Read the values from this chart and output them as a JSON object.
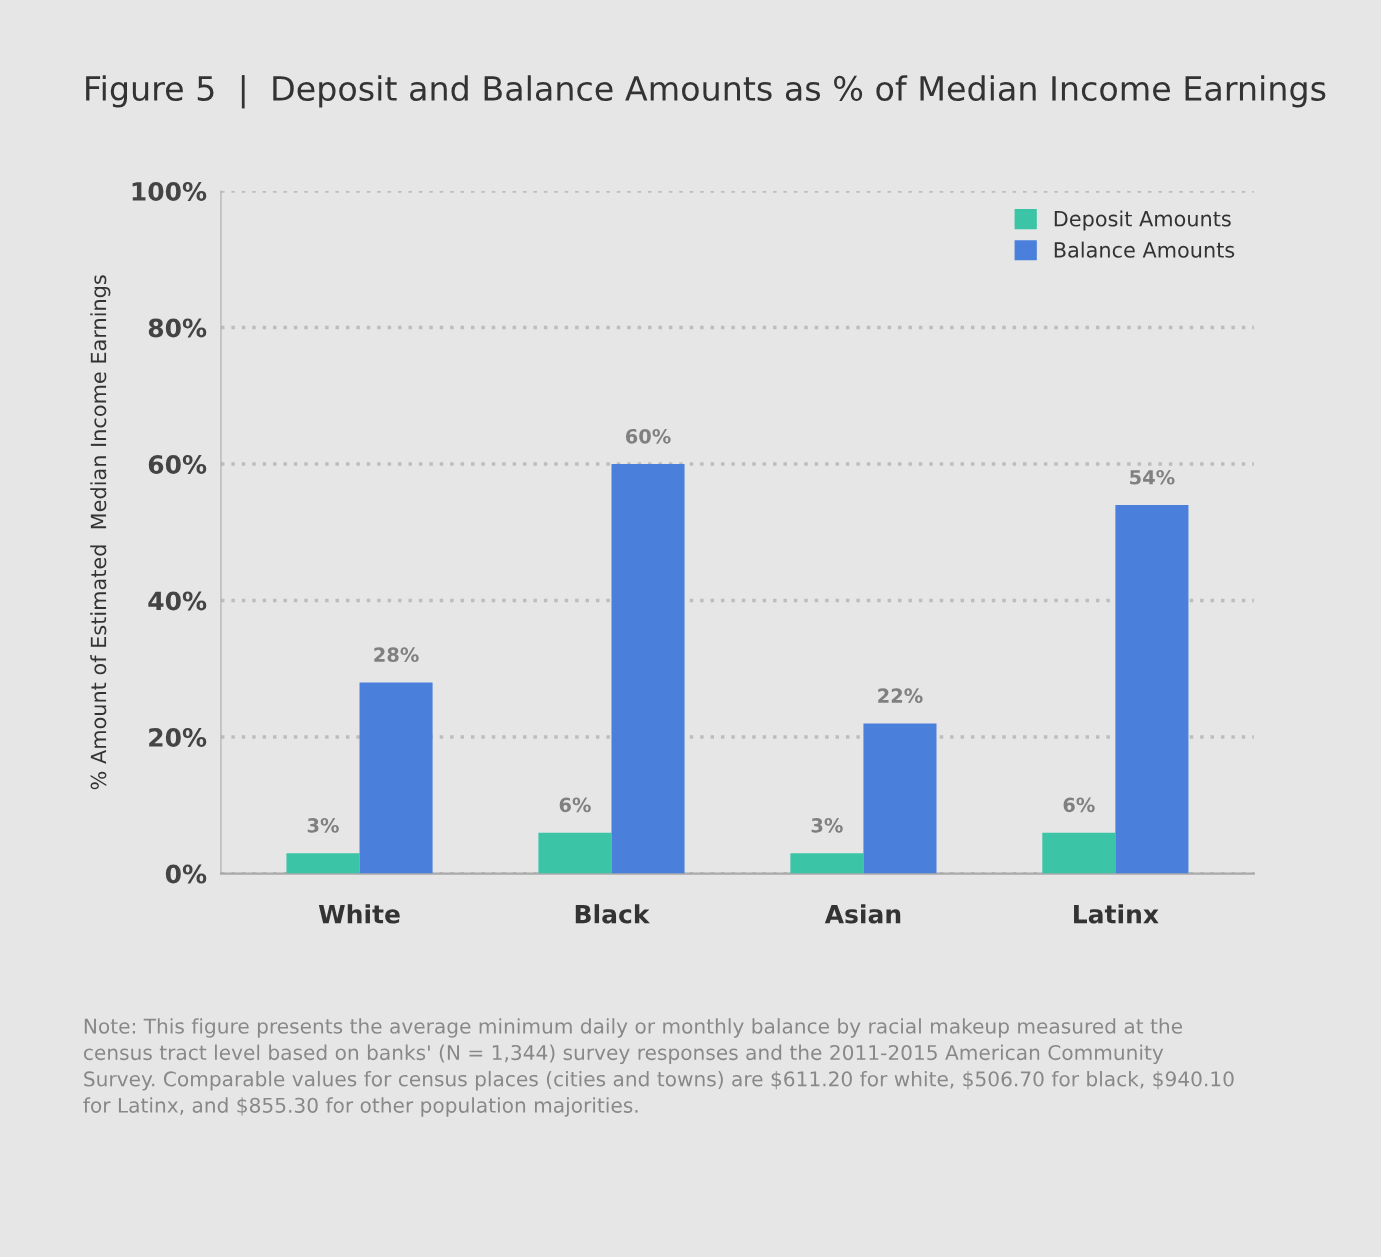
{
  "chart_data": {
    "type": "bar",
    "title": "Figure 5  |  Deposit and Balance Amounts as % of Median Income Earnings",
    "ylabel": "% Amount of Estimated  Median Income Earnings",
    "categories": [
      "White",
      "Black",
      "Asian",
      "Latinx"
    ],
    "series": [
      {
        "name": "Deposit Amounts",
        "color": "#3bc4a6",
        "values": [
          3,
          6,
          3,
          6
        ],
        "value_labels": [
          "3%",
          "6%",
          "3%",
          "6%"
        ]
      },
      {
        "name": "Balance Amounts",
        "color": "#4a80db",
        "values": [
          28,
          60,
          22,
          54
        ],
        "value_labels": [
          "28%",
          "60%",
          "22%",
          "54%"
        ]
      }
    ],
    "ylim": [
      0,
      100
    ],
    "yticks": [
      {
        "value": 0,
        "label": "0%"
      },
      {
        "value": 20,
        "label": "20%"
      },
      {
        "value": 40,
        "label": "40%"
      },
      {
        "value": 60,
        "label": "60%"
      },
      {
        "value": 80,
        "label": "80%"
      },
      {
        "value": 100,
        "label": "100%"
      }
    ],
    "grid": "y",
    "legend": "top right",
    "annotations": [
      "Note: This figure presents the average minimum daily or monthly balance by racial makeup measured at the census tract level based on banks' (N = 1,344) survey responses and the 2011-2015 American Community Survey. Comparable values for census places (cities and towns) are $611.20 for white, $506.70 for black, $940.10 for Latinx, and $855.30 for other population majorities."
    ]
  }
}
